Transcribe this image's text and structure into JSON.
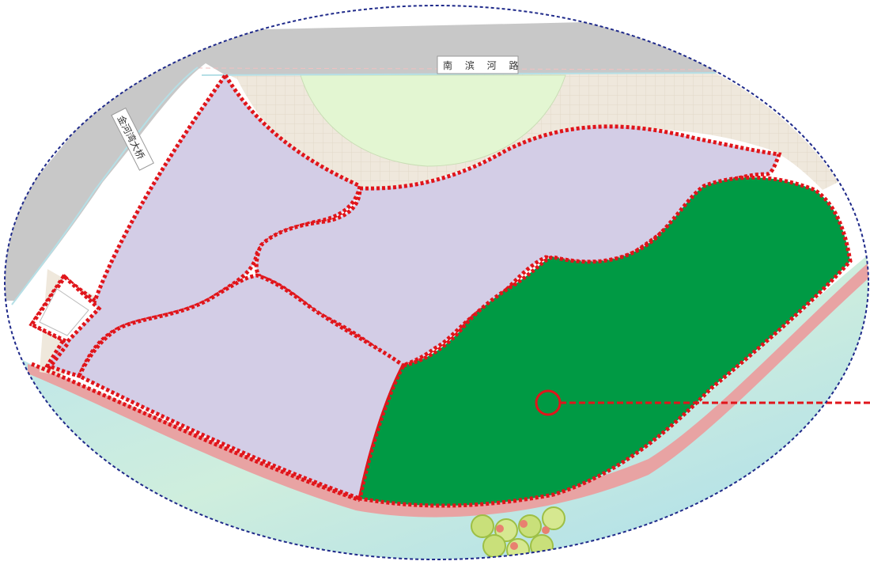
{
  "map": {
    "roads": {
      "north_road_label": "南 滨 河 路",
      "west_road_label": "金河湾大桥"
    },
    "colors": {
      "road": "#c8c8c8",
      "plaza": "#efe8dc",
      "lawn": "#e3f6d2",
      "zone_purple": "#d3cde6",
      "zone_green": "#009a44",
      "zone_boundary": "#e0151b",
      "outline": "#1f2a8a",
      "path": "#e8a3a3",
      "water": "#bfe6ea"
    },
    "icons": {
      "marker": "circle-marker-icon",
      "trees": "tree-cluster-icon"
    }
  }
}
